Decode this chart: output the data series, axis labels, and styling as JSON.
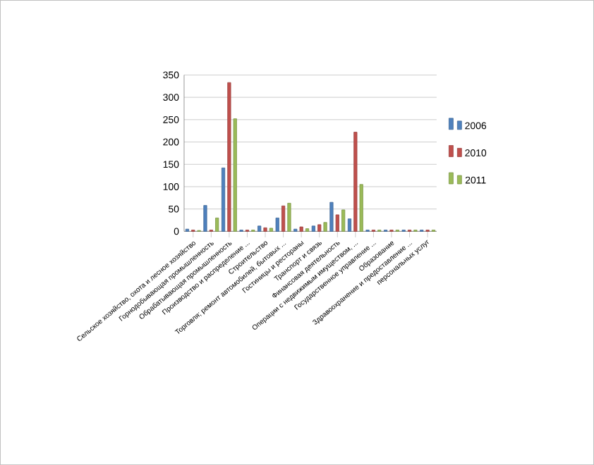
{
  "chart_data": {
    "type": "bar",
    "categories": [
      "Сельское хозяйство, охота и лесное хозяйство",
      "Горнодобывающая промышленность",
      "Обрабатывающая промышленность",
      "Производство и распределение ...",
      "Строительство",
      "Торговля; ремонт автомобилей, бытовых ...",
      "Гостиницы и рестораны",
      "Транспорт и связь",
      "Финансовая деятельность",
      "Операции с недвижимым имуществом, ...",
      "Государственное управление ...",
      "Образование",
      "Здравоохранение и предоставление ...",
      "персональных услуг"
    ],
    "series": [
      {
        "name": "2006",
        "color": "#4f81bd",
        "values": [
          5,
          58,
          142,
          3,
          12,
          30,
          5,
          12,
          65,
          28,
          3,
          3,
          3,
          3
        ]
      },
      {
        "name": "2010",
        "color": "#c0504d",
        "values": [
          3,
          3,
          333,
          3,
          8,
          57,
          10,
          15,
          37,
          222,
          3,
          3,
          3,
          3
        ]
      },
      {
        "name": "2011",
        "color": "#9bbb59",
        "values": [
          2,
          30,
          252,
          3,
          7,
          63,
          6,
          20,
          48,
          105,
          3,
          3,
          3,
          3
        ]
      }
    ],
    "ylim": [
      0,
      350
    ],
    "yticks": [
      0,
      50,
      100,
      150,
      200,
      250,
      300,
      350
    ],
    "grid": "y",
    "legend": "right"
  }
}
